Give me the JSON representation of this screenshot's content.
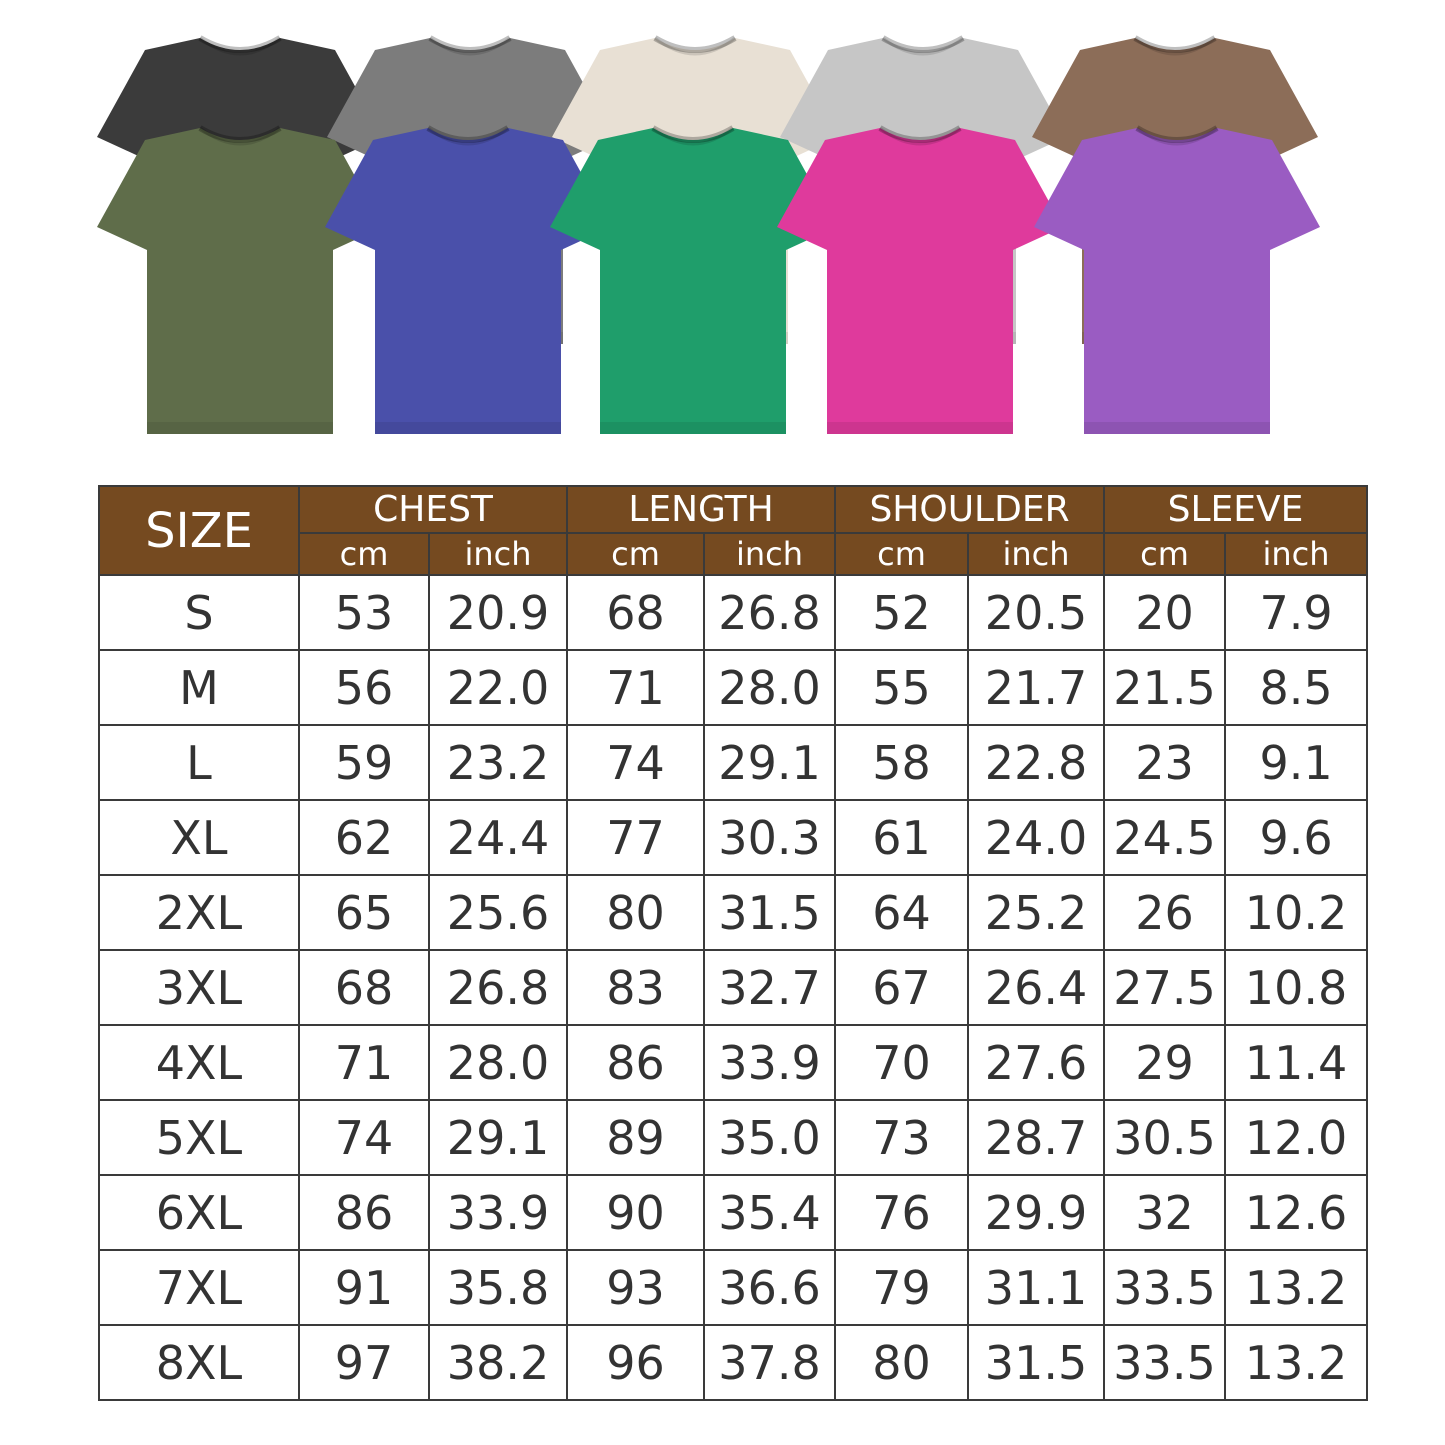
{
  "shirts": {
    "back_row": [
      {
        "color_name": "black",
        "color": "#3b3b3b"
      },
      {
        "color_name": "gray",
        "color": "#7c7c7c"
      },
      {
        "color_name": "cream",
        "color": "#e8e0d4"
      },
      {
        "color_name": "light-gray",
        "color": "#c6c6c6"
      },
      {
        "color_name": "brown",
        "color": "#8c6d58"
      }
    ],
    "front_row": [
      {
        "color_name": "olive",
        "color": "#5f6d4a"
      },
      {
        "color_name": "blue",
        "color": "#4a50aa"
      },
      {
        "color_name": "green",
        "color": "#1f9e6b"
      },
      {
        "color_name": "pink",
        "color": "#df3a9c"
      },
      {
        "color_name": "purple",
        "color": "#9a5cc2"
      }
    ]
  },
  "size_chart": {
    "header_color": "#754a20",
    "size_label": "SIZE",
    "groups": [
      "CHEST",
      "LENGTH",
      "SHOULDER",
      "SLEEVE"
    ],
    "units": [
      "cm",
      "inch"
    ],
    "rows": [
      [
        "S",
        "53",
        "20.9",
        "68",
        "26.8",
        "52",
        "20.5",
        "20",
        "7.9"
      ],
      [
        "M",
        "56",
        "22.0",
        "71",
        "28.0",
        "55",
        "21.7",
        "21.5",
        "8.5"
      ],
      [
        "L",
        "59",
        "23.2",
        "74",
        "29.1",
        "58",
        "22.8",
        "23",
        "9.1"
      ],
      [
        "XL",
        "62",
        "24.4",
        "77",
        "30.3",
        "61",
        "24.0",
        "24.5",
        "9.6"
      ],
      [
        "2XL",
        "65",
        "25.6",
        "80",
        "31.5",
        "64",
        "25.2",
        "26",
        "10.2"
      ],
      [
        "3XL",
        "68",
        "26.8",
        "83",
        "32.7",
        "67",
        "26.4",
        "27.5",
        "10.8"
      ],
      [
        "4XL",
        "71",
        "28.0",
        "86",
        "33.9",
        "70",
        "27.6",
        "29",
        "11.4"
      ],
      [
        "5XL",
        "74",
        "29.1",
        "89",
        "35.0",
        "73",
        "28.7",
        "30.5",
        "12.0"
      ],
      [
        "6XL",
        "86",
        "33.9",
        "90",
        "35.4",
        "76",
        "29.9",
        "32",
        "12.6"
      ],
      [
        "7XL",
        "91",
        "35.8",
        "93",
        "36.6",
        "79",
        "31.1",
        "33.5",
        "13.2"
      ],
      [
        "8XL",
        "97",
        "38.2",
        "96",
        "37.8",
        "80",
        "31.5",
        "33.5",
        "13.2"
      ]
    ]
  }
}
